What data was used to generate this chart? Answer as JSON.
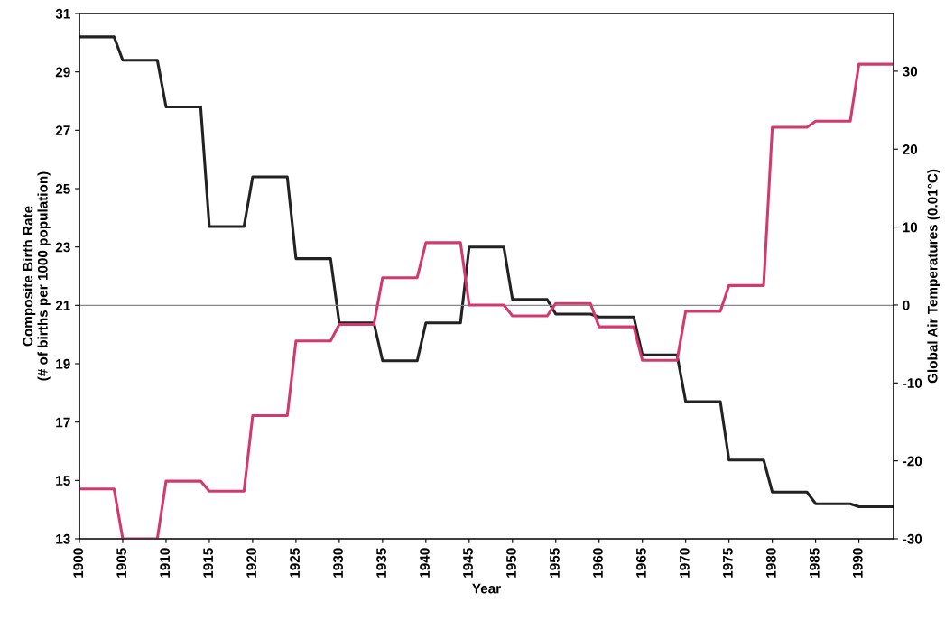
{
  "chart_data": {
    "type": "line",
    "xlabel": "Year",
    "ylabel": "Composite Birth Rate\n(# of births per 1000 population)",
    "y2label": "Global Air Temperatures (0.01°C)",
    "x": [
      1900,
      1904,
      1905,
      1909,
      1910,
      1914,
      1915,
      1919,
      1920,
      1924,
      1925,
      1929,
      1930,
      1934,
      1935,
      1939,
      1940,
      1944,
      1945,
      1949,
      1950,
      1954,
      1955,
      1959,
      1960,
      1964,
      1965,
      1969,
      1970,
      1974,
      1975,
      1979,
      1980,
      1984,
      1985,
      1989,
      1990,
      1994
    ],
    "series": [
      {
        "color": "#222222",
        "values": [
          30.2,
          30.2,
          29.4,
          29.4,
          27.8,
          27.8,
          23.7,
          23.7,
          25.4,
          25.4,
          22.6,
          22.6,
          20.4,
          20.4,
          19.1,
          19.1,
          20.4,
          20.4,
          23.0,
          23.0,
          21.2,
          21.2,
          20.7,
          20.7,
          20.6,
          20.6,
          19.3,
          19.3,
          17.7,
          17.7,
          15.7,
          15.7,
          14.6,
          14.6,
          14.2,
          14.2,
          14.1,
          14.1
        ]
      },
      {
        "color": "#d23a6e",
        "axis": "y2",
        "values": [
          -23.6,
          -23.6,
          -30,
          -30,
          -22.6,
          -22.6,
          -23.9,
          -23.9,
          -14.2,
          -14.2,
          -4.6,
          -4.6,
          -2.5,
          -2.5,
          3.5,
          3.5,
          8.0,
          8.0,
          0,
          0,
          -1.4,
          -1.4,
          0.2,
          0.2,
          -2.8,
          -2.8,
          -7.1,
          -7.1,
          -0.8,
          -0.8,
          2.5,
          2.5,
          22.8,
          22.8,
          23.6,
          23.6,
          30.9,
          30.9
        ]
      }
    ],
    "xlim": [
      1900,
      1994
    ],
    "xticks": [
      1900,
      1905,
      1910,
      1915,
      1920,
      1925,
      1930,
      1935,
      1940,
      1945,
      1950,
      1955,
      1960,
      1965,
      1970,
      1975,
      1980,
      1985,
      1990
    ],
    "ylim": [
      13,
      31
    ],
    "yticks": [
      13,
      15,
      17,
      19,
      21,
      23,
      25,
      27,
      29,
      31
    ],
    "y2lim": [
      -30,
      37.4
    ],
    "y2ticks": [
      -30,
      -20,
      -10,
      0,
      10,
      20,
      30
    ],
    "ref_lines": [
      {
        "axis": "y",
        "value": 21,
        "color": "#888888"
      }
    ],
    "grid": false,
    "marker": "none",
    "line_style": "solid"
  }
}
